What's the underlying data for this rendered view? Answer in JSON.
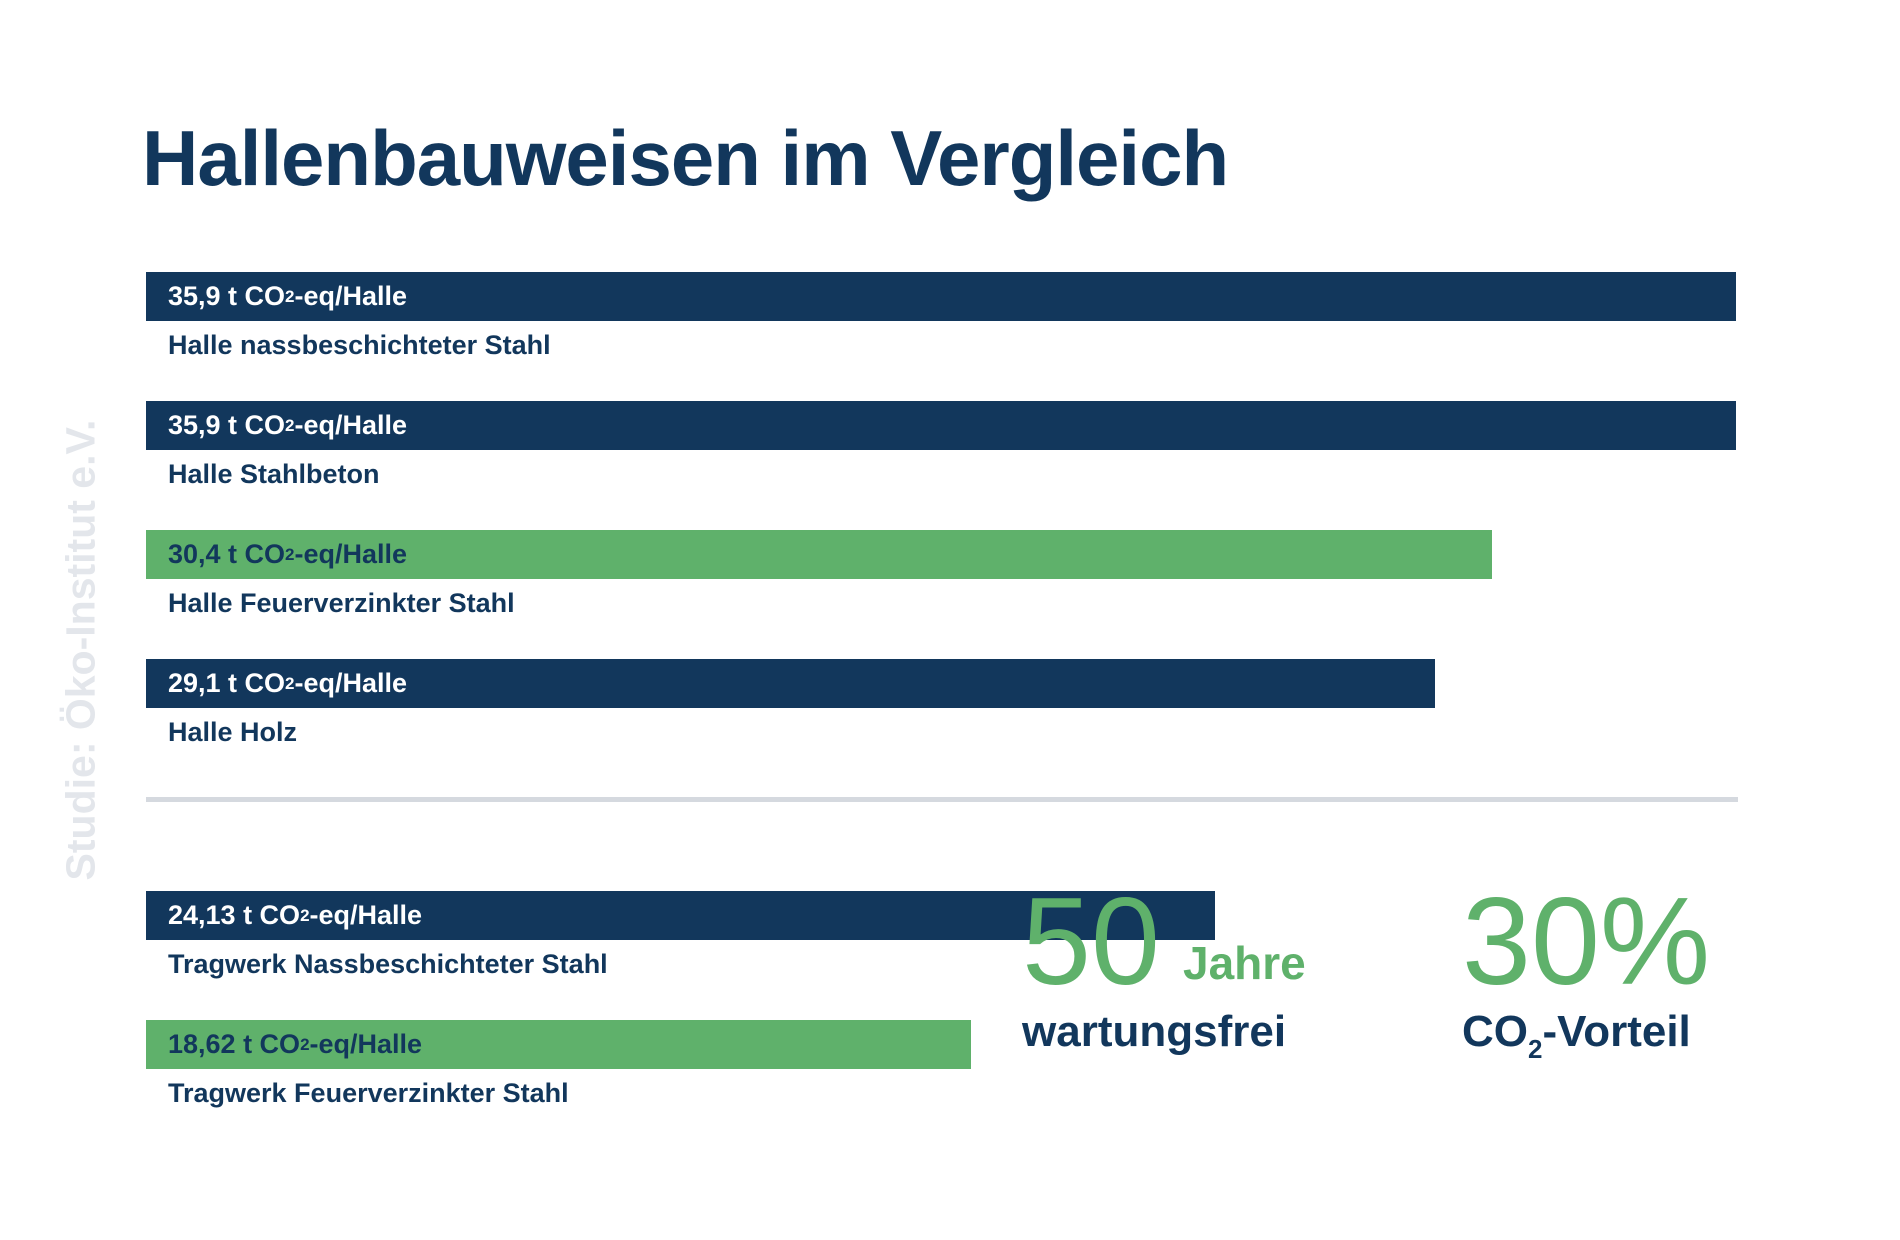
{
  "title": "Hallenbauweisen im Vergleich",
  "source": "Studie: Öko-Institut e.V.",
  "colors": {
    "navy": "#12375c",
    "green": "#5fb16b",
    "divider": "#d5d9df",
    "source": "#e3e6eb"
  },
  "chart_data": [
    {
      "type": "bar",
      "orientation": "horizontal",
      "unit": "t CO2-eq/Halle",
      "categories": [
        "Halle nassbeschichteter Stahl",
        "Halle Stahlbeton",
        "Halle Feuerverzinkter Stahl",
        "Halle Holz"
      ],
      "values": [
        35.9,
        35.9,
        30.4,
        29.1
      ],
      "bars": [
        {
          "value_prefix": "35,9 t CO",
          "value_sub": "2",
          "value_suffix": "-eq/Halle",
          "label": "Halle nassbeschichteter Stahl",
          "color": "#12375c",
          "value": 35.9
        },
        {
          "value_prefix": "35,9 t CO",
          "value_sub": "2",
          "value_suffix": "-eq/Halle",
          "label": "Halle Stahlbeton",
          "color": "#12375c",
          "value": 35.9
        },
        {
          "value_prefix": "30,4 t CO",
          "value_sub": "2",
          "value_suffix": "-eq/Halle",
          "label": "Halle Feuerverzinkter Stahl",
          "color": "#5fb16b",
          "value": 30.4
        },
        {
          "value_prefix": "29,1 t CO",
          "value_sub": "2",
          "value_suffix": "-eq/Halle",
          "label": "Halle Holz",
          "color": "#12375c",
          "value": 29.1
        }
      ],
      "xlim": [
        0,
        35.9
      ]
    },
    {
      "type": "bar",
      "orientation": "horizontal",
      "unit": "t CO2-eq/Halle",
      "categories": [
        "Tragwerk Nassbeschichteter Stahl",
        "Tragwerk Feuerverzinkter Stahl"
      ],
      "values": [
        24.13,
        18.62
      ],
      "bars": [
        {
          "value_prefix": "24,13 t CO",
          "value_sub": "2",
          "value_suffix": "-eq/Halle",
          "label": "Tragwerk Nassbeschichteter Stahl",
          "color": "#12375c",
          "value": 24.13
        },
        {
          "value_prefix": "18,62 t CO",
          "value_sub": "2",
          "value_suffix": "-eq/Halle",
          "label": "Tragwerk Feuerverzinkter Stahl",
          "color": "#5fb16b",
          "value": 18.62
        }
      ],
      "xlim": [
        0,
        35.9
      ]
    }
  ],
  "stats": [
    {
      "number": "50",
      "unit": "Jahre",
      "caption": "wartungsfrei"
    },
    {
      "number": "30%",
      "caption_prefix": "CO",
      "caption_sub": "2",
      "caption_suffix": "-Vorteil"
    }
  ]
}
